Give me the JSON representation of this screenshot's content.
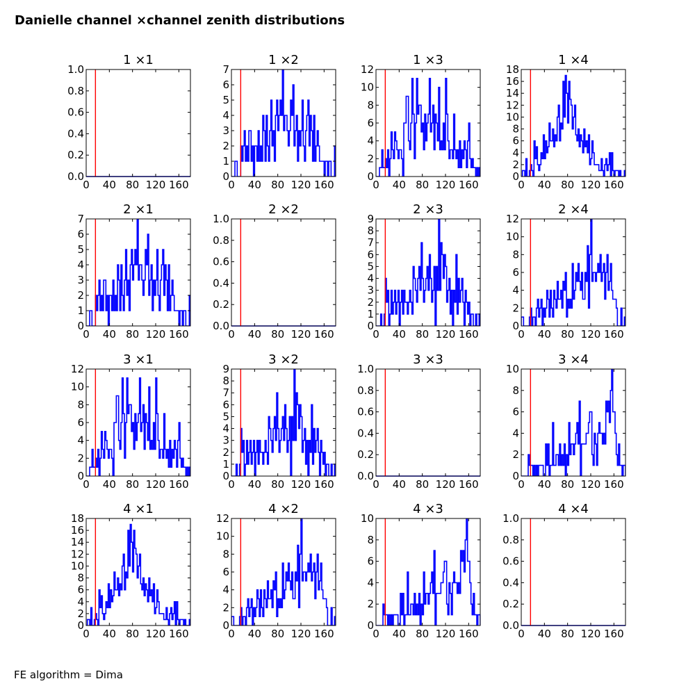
{
  "title": "Danielle channel ×channel zenith distributions",
  "footer": "FE algorithm = Dima",
  "chart_data": {
    "type": "line",
    "subtype": "step-histogram-grid",
    "title": "Danielle channel ×channel zenith distributions",
    "annotation": "FE algorithm = Dima",
    "grid": false,
    "rows": 4,
    "cols": 4,
    "x_range": [
      0,
      180
    ],
    "x_ticks": [
      0,
      40,
      80,
      120,
      160
    ],
    "bin_width": 2,
    "series_color": "#0000ff",
    "cut_line": {
      "x": 16,
      "color": "#ff0000"
    },
    "empty_panel": {
      "ylim": [
        0,
        1
      ],
      "y_ticks": [
        "0.0",
        "0.2",
        "0.4",
        "0.6",
        "0.8",
        "1.0"
      ]
    },
    "pairs": {
      "1_2": {
        "ylim": [
          0,
          7
        ],
        "y_ticks": [
          0,
          1,
          2,
          3,
          4,
          5,
          6,
          7
        ],
        "values": [
          0,
          0,
          0,
          1,
          1,
          0,
          0,
          0,
          2,
          1,
          2,
          3,
          1,
          2,
          1,
          3,
          3,
          1,
          2,
          0,
          2,
          2,
          1,
          3,
          1,
          2,
          1,
          4,
          3,
          1,
          4,
          2,
          1,
          3,
          5,
          2,
          3,
          1,
          4,
          5,
          3,
          4,
          5,
          4,
          7,
          3,
          4,
          4,
          3,
          2,
          3,
          5,
          4,
          6,
          2,
          3,
          4,
          1,
          3,
          2,
          3,
          5,
          2,
          1,
          3,
          4,
          5,
          2,
          4,
          3,
          1,
          4,
          1,
          2,
          3,
          2,
          1,
          1,
          1,
          1,
          0,
          1,
          1,
          0,
          1,
          1,
          0,
          0,
          0,
          2
        ]
      },
      "1_3": {
        "ylim": [
          0,
          12
        ],
        "y_ticks": [
          0,
          2,
          4,
          6,
          8,
          10,
          12
        ],
        "values": [
          0,
          0,
          0,
          1,
          1,
          3,
          1,
          1,
          2,
          1,
          3,
          0,
          2,
          5,
          3,
          2,
          5,
          4,
          3,
          2,
          3,
          3,
          2,
          0,
          6,
          6,
          9,
          9,
          4,
          3,
          6,
          11,
          7,
          2,
          6,
          11,
          7,
          8,
          8,
          5,
          6,
          3,
          7,
          4,
          6,
          7,
          11,
          5,
          6,
          8,
          3,
          7,
          6,
          4,
          10,
          3,
          4,
          3,
          6,
          3,
          11,
          7,
          4,
          2,
          3,
          3,
          2,
          7,
          3,
          2,
          3,
          1,
          4,
          1,
          3,
          2,
          4,
          3,
          1,
          4,
          6,
          2,
          1,
          2,
          1,
          1,
          0,
          1,
          0,
          1
        ]
      },
      "1_4": {
        "ylim": [
          0,
          18
        ],
        "y_ticks": [
          0,
          2,
          4,
          6,
          8,
          10,
          12,
          14,
          16,
          18
        ],
        "values": [
          0,
          1,
          1,
          0,
          3,
          0,
          0,
          1,
          2,
          1,
          0,
          6,
          3,
          5,
          2,
          1,
          2,
          4,
          3,
          7,
          3,
          6,
          4,
          5,
          9,
          6,
          6,
          8,
          5,
          7,
          6,
          10,
          12,
          6,
          9,
          8,
          16,
          10,
          17,
          14,
          9,
          16,
          13,
          12,
          8,
          10,
          12,
          7,
          6,
          8,
          5,
          7,
          6,
          4,
          8,
          5,
          6,
          4,
          7,
          2,
          3,
          6,
          4,
          2,
          2,
          2,
          2,
          1,
          1,
          3,
          1,
          0,
          2,
          3,
          1,
          2,
          4,
          0,
          4,
          1,
          0,
          1,
          1,
          1,
          0,
          1,
          0,
          0,
          0,
          1
        ]
      },
      "2_3": {
        "ylim": [
          0,
          9
        ],
        "y_ticks": [
          0,
          1,
          2,
          3,
          4,
          5,
          6,
          7,
          8,
          9
        ],
        "values": [
          0,
          0,
          0,
          0,
          1,
          0,
          0,
          1,
          4,
          2,
          3,
          0,
          1,
          3,
          1,
          2,
          3,
          1,
          2,
          3,
          0,
          2,
          3,
          1,
          3,
          2,
          2,
          1,
          2,
          3,
          2,
          1,
          5,
          4,
          3,
          2,
          4,
          5,
          3,
          7,
          4,
          2,
          3,
          4,
          5,
          3,
          6,
          4,
          2,
          3,
          5,
          0,
          5,
          3,
          9,
          3,
          7,
          6,
          4,
          6,
          5,
          2,
          3,
          4,
          1,
          3,
          0,
          3,
          2,
          6,
          1,
          4,
          2,
          3,
          4,
          2,
          0,
          3,
          2,
          1,
          2,
          0,
          1,
          1,
          0,
          0,
          1,
          0,
          0,
          1
        ]
      },
      "2_4": {
        "ylim": [
          0,
          12
        ],
        "y_ticks": [
          0,
          2,
          4,
          6,
          8,
          10,
          12
        ],
        "values": [
          1,
          1,
          0,
          0,
          0,
          0,
          0,
          1,
          2,
          0,
          1,
          1,
          0,
          2,
          3,
          1,
          2,
          3,
          0,
          2,
          1,
          2,
          4,
          3,
          1,
          4,
          2,
          1,
          4,
          3,
          2,
          5,
          3,
          3,
          4,
          2,
          5,
          4,
          6,
          1,
          3,
          2,
          3,
          2,
          7,
          3,
          4,
          6,
          5,
          7,
          5,
          4,
          6,
          3,
          3,
          6,
          5,
          9,
          2,
          8,
          12,
          5,
          6,
          6,
          5,
          6,
          7,
          6,
          8,
          5,
          6,
          7,
          3,
          6,
          8,
          4,
          5,
          7,
          4,
          3,
          3,
          3,
          2,
          0,
          0,
          0,
          2,
          0,
          0,
          1
        ]
      },
      "3_4": {
        "ylim": [
          0,
          10
        ],
        "y_ticks": [
          0,
          2,
          4,
          6,
          8,
          10
        ],
        "values": [
          0,
          0,
          0,
          0,
          0,
          0,
          2,
          1,
          1,
          1,
          0,
          1,
          0,
          1,
          0,
          1,
          1,
          1,
          1,
          0,
          0,
          3,
          1,
          3,
          0,
          1,
          1,
          5,
          1,
          1,
          2,
          2,
          1,
          3,
          1,
          2,
          1,
          3,
          0,
          2,
          1,
          5,
          2,
          3,
          3,
          2,
          3,
          4,
          5,
          3,
          7,
          0,
          3,
          3,
          3,
          3,
          4,
          4,
          5,
          6,
          6,
          2,
          1,
          4,
          3,
          1,
          4,
          5,
          4,
          4,
          3,
          4,
          3,
          7,
          6,
          7,
          5,
          8,
          10,
          6,
          6,
          4,
          2,
          1,
          3,
          1,
          1,
          0,
          1,
          1
        ]
      }
    },
    "panels": [
      {
        "title": "1 ×1",
        "pair": null
      },
      {
        "title": "1 ×2",
        "pair": "1_2"
      },
      {
        "title": "1 ×3",
        "pair": "1_3"
      },
      {
        "title": "1 ×4",
        "pair": "1_4"
      },
      {
        "title": "2 ×1",
        "pair": "1_2"
      },
      {
        "title": "2 ×2",
        "pair": null
      },
      {
        "title": "2 ×3",
        "pair": "2_3"
      },
      {
        "title": "2 ×4",
        "pair": "2_4"
      },
      {
        "title": "3 ×1",
        "pair": "1_3"
      },
      {
        "title": "3 ×2",
        "pair": "2_3"
      },
      {
        "title": "3 ×3",
        "pair": null
      },
      {
        "title": "3 ×4",
        "pair": "3_4"
      },
      {
        "title": "4 ×1",
        "pair": "1_4"
      },
      {
        "title": "4 ×2",
        "pair": "2_4"
      },
      {
        "title": "4 ×3",
        "pair": "3_4"
      },
      {
        "title": "4 ×4",
        "pair": null
      }
    ]
  }
}
